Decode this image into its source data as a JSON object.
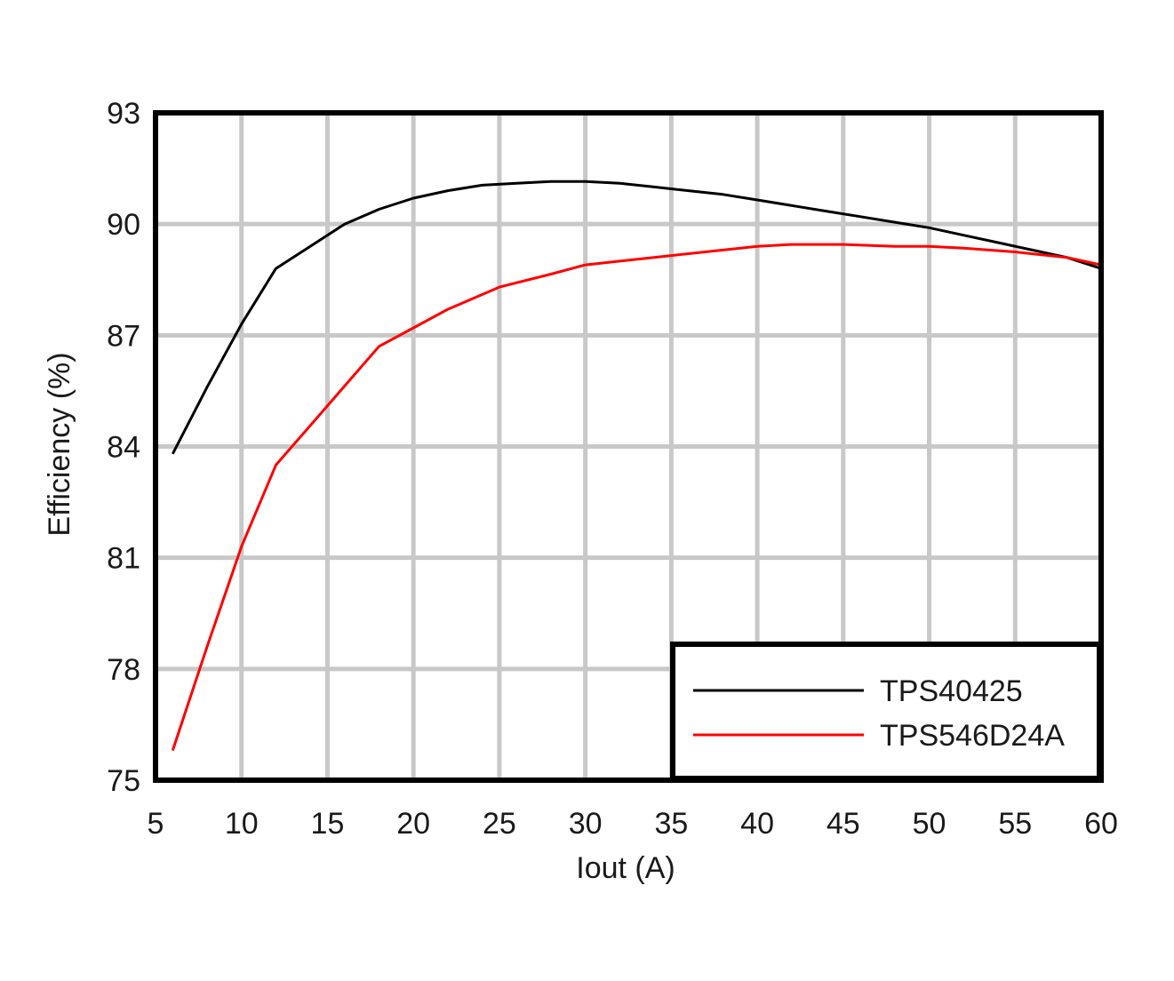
{
  "chart_data": {
    "type": "line",
    "title": "",
    "xlabel": "Iout (A)",
    "ylabel": "Efficiency (%)",
    "xlim": [
      5,
      60
    ],
    "ylim": [
      75,
      93
    ],
    "x_ticks": [
      5,
      10,
      15,
      20,
      25,
      30,
      35,
      40,
      45,
      50,
      55,
      60
    ],
    "y_ticks": [
      75,
      78,
      81,
      84,
      87,
      90,
      93
    ],
    "x_tick_labels": [
      "5",
      "10",
      "15",
      "20",
      "25",
      "30",
      "35",
      "40",
      "45",
      "50",
      "55",
      "60"
    ],
    "y_tick_labels": [
      "75",
      "78",
      "81",
      "84",
      "87",
      "90",
      "93"
    ],
    "grid": true,
    "legend_position": "bottom-right",
    "series": [
      {
        "name": "TPS40425",
        "color": "#000000",
        "x": [
          6,
          8,
          10,
          12,
          14,
          16,
          18,
          20,
          22,
          24,
          26,
          28,
          30,
          32,
          34,
          36,
          38,
          40,
          42,
          44,
          46,
          48,
          50,
          52,
          54,
          56,
          58,
          60
        ],
        "y": [
          83.8,
          85.6,
          87.3,
          88.8,
          89.4,
          90.0,
          90.4,
          90.7,
          90.9,
          91.05,
          91.1,
          91.15,
          91.15,
          91.1,
          91.0,
          90.9,
          90.8,
          90.65,
          90.5,
          90.35,
          90.2,
          90.05,
          89.9,
          89.7,
          89.5,
          89.3,
          89.1,
          88.8
        ]
      },
      {
        "name": "TPS546D24A",
        "color": "#ff0000",
        "x": [
          6,
          8,
          10,
          12,
          15,
          18,
          20,
          22,
          25,
          28,
          30,
          32,
          35,
          38,
          40,
          42,
          45,
          48,
          50,
          52,
          55,
          58,
          60
        ],
        "y": [
          75.8,
          78.6,
          81.3,
          83.5,
          85.1,
          86.7,
          87.2,
          87.7,
          88.3,
          88.65,
          88.9,
          89.0,
          89.15,
          89.3,
          89.4,
          89.45,
          89.45,
          89.4,
          89.4,
          89.35,
          89.25,
          89.1,
          88.9
        ]
      }
    ]
  }
}
